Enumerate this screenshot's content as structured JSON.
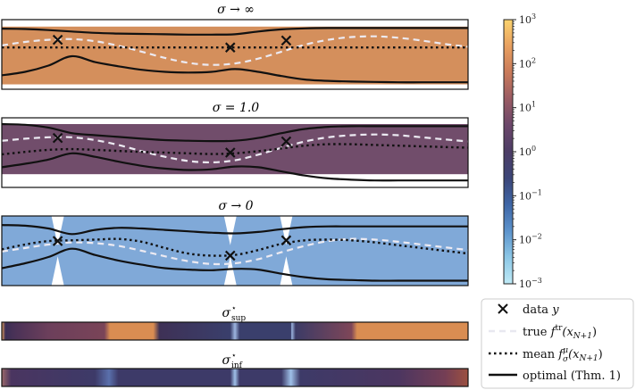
{
  "chart_data": {
    "type": "line",
    "panels": [
      {
        "id": "inf",
        "title": "σ → ∞",
        "band_color": "#d48f5c",
        "x": [
          0,
          0.05,
          0.1,
          0.15,
          0.2,
          0.25,
          0.3,
          0.35,
          0.4,
          0.45,
          0.5,
          0.55,
          0.6,
          0.65,
          0.7,
          0.75,
          0.8,
          0.85,
          0.9,
          0.95,
          1.0
        ],
        "true": [
          0.26,
          0.36,
          0.42,
          0.44,
          0.38,
          0.25,
          0.08,
          -0.1,
          -0.24,
          -0.3,
          -0.26,
          -0.12,
          0.08,
          0.28,
          0.42,
          0.5,
          0.52,
          0.48,
          0.4,
          0.3,
          0.22
        ],
        "mean": [
          0.2,
          0.2,
          0.2,
          0.2,
          0.2,
          0.2,
          0.2,
          0.2,
          0.2,
          0.2,
          0.2,
          0.2,
          0.2,
          0.2,
          0.2,
          0.2,
          0.2,
          0.2,
          0.2,
          0.2,
          0.2
        ],
        "upper": [
          0.74,
          0.73,
          0.7,
          0.66,
          0.62,
          0.6,
          0.59,
          0.58,
          0.57,
          0.57,
          0.58,
          0.66,
          0.72,
          0.75,
          0.76,
          0.76,
          0.76,
          0.76,
          0.76,
          0.76,
          0.76
        ],
        "lower": [
          -0.6,
          -0.5,
          -0.32,
          -0.05,
          -0.22,
          -0.34,
          -0.44,
          -0.5,
          -0.52,
          -0.5,
          -0.42,
          -0.5,
          -0.62,
          -0.72,
          -0.76,
          -0.78,
          -0.79,
          -0.8,
          -0.8,
          -0.8,
          -0.8
        ],
        "band_upper": 0.8,
        "band_lower": -0.86,
        "data_points": [
          [
            0.12,
            0.42
          ],
          [
            0.49,
            0.2
          ],
          [
            0.61,
            0.4
          ]
        ]
      },
      {
        "id": "one",
        "title": "σ = 1.0",
        "band_color": "#714d6b",
        "x": [
          0,
          0.05,
          0.1,
          0.15,
          0.2,
          0.25,
          0.3,
          0.35,
          0.4,
          0.45,
          0.5,
          0.55,
          0.6,
          0.65,
          0.7,
          0.75,
          0.8,
          0.85,
          0.9,
          0.95,
          1.0
        ],
        "true": [
          0.34,
          0.4,
          0.44,
          0.44,
          0.36,
          0.22,
          0.04,
          -0.12,
          -0.24,
          -0.28,
          -0.22,
          -0.06,
          0.14,
          0.32,
          0.44,
          0.5,
          0.52,
          0.5,
          0.44,
          0.38,
          0.32
        ],
        "mean": [
          -0.05,
          0.02,
          0.08,
          0.1,
          0.08,
          0.05,
          0.02,
          0.0,
          -0.02,
          -0.04,
          -0.02,
          0.04,
          0.12,
          0.2,
          0.24,
          0.24,
          0.22,
          0.2,
          0.18,
          0.16,
          0.14
        ],
        "upper": [
          0.82,
          0.8,
          0.72,
          0.56,
          0.5,
          0.45,
          0.4,
          0.36,
          0.34,
          0.33,
          0.34,
          0.42,
          0.56,
          0.68,
          0.74,
          0.76,
          0.76,
          0.76,
          0.76,
          0.76,
          0.76
        ],
        "lower": [
          -0.42,
          -0.32,
          -0.2,
          -0.02,
          -0.12,
          -0.26,
          -0.38,
          -0.46,
          -0.5,
          -0.48,
          -0.4,
          -0.42,
          -0.54,
          -0.66,
          -0.74,
          -0.78,
          -0.8,
          -0.8,
          -0.8,
          -0.8,
          -0.8
        ],
        "band_upper": 0.82,
        "band_lower": -0.62,
        "data_points": [
          [
            0.12,
            0.42
          ],
          [
            0.49,
            0.0
          ],
          [
            0.61,
            0.32
          ]
        ]
      },
      {
        "id": "zero",
        "title": "σ → 0",
        "band_color": "#80a9d8",
        "x": [
          0,
          0.05,
          0.1,
          0.15,
          0.2,
          0.25,
          0.3,
          0.35,
          0.4,
          0.45,
          0.5,
          0.55,
          0.6,
          0.65,
          0.7,
          0.75,
          0.8,
          0.85,
          0.9,
          0.95,
          1.0
        ],
        "true": [
          -0.02,
          0.08,
          0.18,
          0.24,
          0.22,
          0.14,
          0.0,
          -0.16,
          -0.3,
          -0.38,
          -0.36,
          -0.24,
          -0.04,
          0.14,
          0.28,
          0.34,
          0.32,
          0.26,
          0.18,
          0.1,
          0.02
        ],
        "mean": [
          0.04,
          0.18,
          0.28,
          0.3,
          0.32,
          0.34,
          0.26,
          0.08,
          -0.08,
          -0.14,
          -0.12,
          0.02,
          0.2,
          0.3,
          0.32,
          0.3,
          0.24,
          0.16,
          0.08,
          0.0,
          -0.08
        ],
        "upper": [
          0.74,
          0.72,
          0.64,
          0.48,
          0.6,
          0.66,
          0.64,
          0.6,
          0.56,
          0.52,
          0.5,
          0.54,
          0.62,
          0.68,
          0.7,
          0.7,
          0.7,
          0.7,
          0.7,
          0.7,
          0.7
        ],
        "lower": [
          -0.5,
          -0.36,
          -0.18,
          0.06,
          -0.12,
          -0.28,
          -0.4,
          -0.5,
          -0.54,
          -0.56,
          -0.52,
          -0.54,
          -0.66,
          -0.76,
          -0.82,
          -0.84,
          -0.86,
          -0.86,
          -0.86,
          -0.86,
          -0.86
        ],
        "band_upper": 1.0,
        "band_lower": -1.0,
        "spikes": [
          0.12,
          0.49,
          0.61
        ],
        "data_points": [
          [
            0.12,
            0.28
          ],
          [
            0.49,
            -0.14
          ],
          [
            0.61,
            0.3
          ]
        ]
      }
    ],
    "heatmaps": [
      {
        "id": "sup",
        "title": "σ*sup",
        "title_base": "σ",
        "title_sup": "⋆",
        "title_sub": "sup",
        "stops": [
          [
            0.0,
            "#e8a060"
          ],
          [
            0.008,
            "#3c2f56"
          ],
          [
            0.03,
            "#4b3257"
          ],
          [
            0.1,
            "#6c3f5b"
          ],
          [
            0.22,
            "#7a4458"
          ],
          [
            0.232,
            "#d98d52"
          ],
          [
            0.325,
            "#d98d52"
          ],
          [
            0.338,
            "#3e3156"
          ],
          [
            0.49,
            "#3a3f6c"
          ],
          [
            0.5,
            "#9eb6e0"
          ],
          [
            0.51,
            "#3a3f6c"
          ],
          [
            0.62,
            "#3a3f6c"
          ],
          [
            0.622,
            "#9eb6e0"
          ],
          [
            0.63,
            "#3c3b66"
          ],
          [
            0.75,
            "#7e4658"
          ],
          [
            0.762,
            "#d98d52"
          ],
          [
            1.0,
            "#d98d52"
          ]
        ]
      },
      {
        "id": "inf",
        "title": "σ*inf",
        "title_base": "σ",
        "title_sup": "⋆",
        "title_sub": "inf",
        "stops": [
          [
            0.0,
            "#9c6a6a"
          ],
          [
            0.02,
            "#4a3560"
          ],
          [
            0.2,
            "#3d3a68"
          ],
          [
            0.23,
            "#5a70ac"
          ],
          [
            0.25,
            "#3d3a68"
          ],
          [
            0.49,
            "#3d3a68"
          ],
          [
            0.5,
            "#9fc0e8"
          ],
          [
            0.51,
            "#3d3a68"
          ],
          [
            0.6,
            "#3d3a68"
          ],
          [
            0.62,
            "#9fc0e8"
          ],
          [
            0.64,
            "#3d3a68"
          ],
          [
            0.85,
            "#4c3660"
          ],
          [
            0.95,
            "#743e55"
          ],
          [
            1.0,
            "#9c5040"
          ]
        ]
      }
    ],
    "colorbar": {
      "label": "",
      "scale": "log",
      "range": [
        0.001,
        1000
      ],
      "ticks": [
        {
          "value": 1000,
          "base": "10",
          "exp": "3"
        },
        {
          "value": 100,
          "base": "10",
          "exp": "2"
        },
        {
          "value": 10,
          "base": "10",
          "exp": "1"
        },
        {
          "value": 1,
          "base": "10",
          "exp": "0"
        },
        {
          "value": 0.1,
          "base": "10",
          "exp": "−1"
        },
        {
          "value": 0.01,
          "base": "10",
          "exp": "−2"
        },
        {
          "value": 0.001,
          "base": "10",
          "exp": "−3"
        }
      ],
      "colors": [
        "#fbd36e",
        "#e8a060",
        "#c97a5a",
        "#9a5c64",
        "#6b476a",
        "#4d3d66",
        "#3c4678",
        "#3e66a6",
        "#5c93cc",
        "#8cc7e6",
        "#bfeaf6"
      ]
    },
    "legend": [
      {
        "key": "data",
        "label": "data y",
        "style": "marker-x"
      },
      {
        "key": "true",
        "label": "true ftr(xN+1)",
        "style": "dashed",
        "color": "#e8e8f0"
      },
      {
        "key": "mean",
        "label": "mean fσμ(xN+1)",
        "style": "dotted",
        "color": "#111111"
      },
      {
        "key": "optimal",
        "label": "optimal (Thm. 1)",
        "style": "solid",
        "color": "#111111"
      }
    ]
  },
  "legend_text": {
    "data": {
      "a": "data ",
      "b": "y"
    },
    "true": {
      "a": "true ",
      "f": "f",
      "sup": "tr",
      "arg": "(x",
      "sub": "N+1",
      "close": ")"
    },
    "mean": {
      "a": "mean ",
      "f": "f",
      "sup": "μ",
      "subf": "σ",
      "arg": "(x",
      "sub": "N+1",
      "close": ")"
    },
    "optimal": {
      "a": "optimal (Thm. 1)"
    }
  }
}
